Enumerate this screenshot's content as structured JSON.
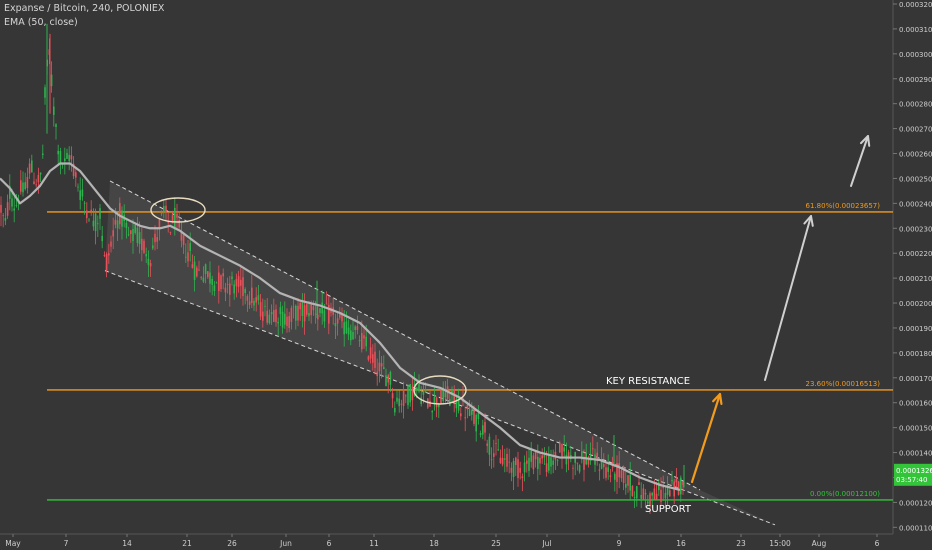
{
  "header": {
    "title": "Expanse / Bitcoin, 240, POLONIEX",
    "indicator": "EMA (50, close)"
  },
  "colors": {
    "background": "#363636",
    "up_candle": "#2fb34f",
    "down_candle": "#e8515a",
    "ema": "#b4b4b4",
    "fib_line": "#f29b1d",
    "support_line": "#33c43a",
    "channel": "#d8d8d8",
    "arrow_orange": "#f29b1d",
    "arrow_white": "#d0d0d0",
    "price_tag": "#33c43a"
  },
  "chart_data": {
    "type": "candlestick",
    "title": "Expanse / Bitcoin, 240, POLONIEX",
    "ylim": [
      0.000115,
      0.00032
    ],
    "x_ticks": [
      "May",
      "7",
      "14",
      "21",
      "26",
      "Jun",
      "6",
      "11",
      "18",
      "25",
      "Jul",
      "9",
      "16",
      "23",
      "15:00",
      "Aug",
      "6"
    ],
    "y_ticks": [
      "0.00032000",
      "0.00031000",
      "0.00030000",
      "0.00029000",
      "0.00028000",
      "0.00027000",
      "0.00026000",
      "0.00025000",
      "0.00024000",
      "0.00023000",
      "0.00022000",
      "0.00021000",
      "0.00020000",
      "0.00019000",
      "0.00018000",
      "0.00017000",
      "0.00016000",
      "0.00015000",
      "0.00014000",
      "0.00013000",
      "0.00012000",
      "0.00011000"
    ],
    "price_trend": [
      [
        0,
        0.00024
      ],
      [
        5,
        0.00023
      ],
      [
        10,
        0.000245
      ],
      [
        15,
        0.000238
      ],
      [
        20,
        0.000245
      ],
      [
        25,
        0.000245
      ],
      [
        30,
        0.000255
      ],
      [
        35,
        0.00025
      ],
      [
        40,
        0.000248
      ],
      [
        44,
        0.000265
      ],
      [
        46,
        0.0003
      ],
      [
        48,
        0.00029
      ],
      [
        50,
        0.000305
      ],
      [
        52,
        0.000285
      ],
      [
        56,
        0.00027
      ],
      [
        60,
        0.000258
      ],
      [
        65,
        0.000255
      ],
      [
        70,
        0.00026
      ],
      [
        75,
        0.000252
      ],
      [
        80,
        0.000245
      ],
      [
        85,
        0.00024
      ],
      [
        90,
        0.000236
      ],
      [
        95,
        0.000232
      ],
      [
        100,
        0.000236
      ],
      [
        105,
        0.000215
      ],
      [
        110,
        0.000222
      ],
      [
        115,
        0.000232
      ],
      [
        120,
        0.000236
      ],
      [
        125,
        0.00023
      ],
      [
        130,
        0.000225
      ],
      [
        135,
        0.000228
      ],
      [
        140,
        0.000225
      ],
      [
        145,
        0.000222
      ],
      [
        150,
        0.000218
      ],
      [
        155,
        0.000225
      ],
      [
        160,
        0.000232
      ],
      [
        165,
        0.000236
      ],
      [
        170,
        0.00023
      ],
      [
        175,
        0.000234
      ],
      [
        180,
        0.000228
      ],
      [
        185,
        0.000222
      ],
      [
        190,
        0.00022
      ],
      [
        195,
        0.000213
      ],
      [
        205,
        0.000212
      ],
      [
        215,
        0.000209
      ],
      [
        225,
        0.000208
      ],
      [
        235,
        0.000207
      ],
      [
        245,
        0.000206
      ],
      [
        255,
        0.000201
      ],
      [
        265,
        0.000196
      ],
      [
        275,
        0.000197
      ],
      [
        285,
        0.000193
      ],
      [
        295,
        0.000196
      ],
      [
        305,
        0.000197
      ],
      [
        315,
        0.000198
      ],
      [
        320,
        0.000196
      ],
      [
        330,
        0.000195
      ],
      [
        340,
        0.000192
      ],
      [
        350,
        0.000189
      ],
      [
        360,
        0.000186
      ],
      [
        370,
        0.00018
      ],
      [
        380,
        0.000173
      ],
      [
        390,
        0.00017
      ],
      [
        395,
        0.00016
      ],
      [
        405,
        0.000162
      ],
      [
        415,
        0.000166
      ],
      [
        425,
        0.000162
      ],
      [
        435,
        0.00016
      ],
      [
        445,
        0.000163
      ],
      [
        455,
        0.000161
      ],
      [
        465,
        0.000157
      ],
      [
        475,
        0.000153
      ],
      [
        485,
        0.00015
      ],
      [
        490,
        0.000142
      ],
      [
        500,
        0.000138
      ],
      [
        510,
        0.000135
      ],
      [
        520,
        0.000133
      ],
      [
        530,
        0.000137
      ],
      [
        540,
        0.000138
      ],
      [
        550,
        0.000135
      ],
      [
        560,
        0.00014
      ],
      [
        570,
        0.000138
      ],
      [
        580,
        0.000136
      ],
      [
        590,
        0.000138
      ],
      [
        600,
        0.000136
      ],
      [
        610,
        0.000132
      ],
      [
        620,
        0.000132
      ],
      [
        630,
        0.000127
      ],
      [
        640,
        0.000124
      ],
      [
        650,
        0.000122
      ],
      [
        660,
        0.000124
      ],
      [
        670,
        0.000125
      ],
      [
        680,
        0.000126
      ],
      [
        684,
        0.000133
      ]
    ],
    "ema_50": [
      [
        0,
        0.00025
      ],
      [
        10,
        0.000246
      ],
      [
        20,
        0.00024
      ],
      [
        30,
        0.000243
      ],
      [
        40,
        0.000247
      ],
      [
        50,
        0.000253
      ],
      [
        60,
        0.000256
      ],
      [
        70,
        0.000256
      ],
      [
        80,
        0.000253
      ],
      [
        90,
        0.000248
      ],
      [
        100,
        0.000243
      ],
      [
        110,
        0.000238
      ],
      [
        120,
        0.000235
      ],
      [
        130,
        0.000233
      ],
      [
        140,
        0.000231
      ],
      [
        150,
        0.00023
      ],
      [
        160,
        0.00023
      ],
      [
        170,
        0.000231
      ],
      [
        180,
        0.000229
      ],
      [
        190,
        0.000226
      ],
      [
        200,
        0.000223
      ],
      [
        210,
        0.000221
      ],
      [
        220,
        0.000219
      ],
      [
        240,
        0.000215
      ],
      [
        260,
        0.00021
      ],
      [
        280,
        0.000204
      ],
      [
        300,
        0.000201
      ],
      [
        320,
        0.000199
      ],
      [
        340,
        0.000196
      ],
      [
        360,
        0.000192
      ],
      [
        380,
        0.000184
      ],
      [
        400,
        0.000174
      ],
      [
        420,
        0.000168
      ],
      [
        440,
        0.000166
      ],
      [
        460,
        0.000162
      ],
      [
        480,
        0.000156
      ],
      [
        500,
        0.00015
      ],
      [
        520,
        0.000143
      ],
      [
        540,
        0.00014
      ],
      [
        560,
        0.000138
      ],
      [
        580,
        0.000138
      ],
      [
        600,
        0.000137
      ],
      [
        620,
        0.000134
      ],
      [
        640,
        0.00013
      ],
      [
        660,
        0.000127
      ],
      [
        680,
        0.000125
      ]
    ],
    "channel_upper": [
      [
        110,
        0.000249
      ],
      [
        700,
        0.000125
      ]
    ],
    "channel_lower": [
      [
        105,
        0.000213
      ],
      [
        775,
        0.000111
      ]
    ],
    "fib_levels": [
      {
        "ratio_label": "61.80%(0.00023657)",
        "value": 0.00023657
      },
      {
        "ratio_label": "23.60%(0.00016513)",
        "value": 0.00016513
      },
      {
        "ratio_label": "0.00%(0.00012100)",
        "value": 0.000121
      }
    ],
    "annotations": {
      "key_resistance": "KEY RESISTANCE",
      "support": "SUPPORT"
    },
    "last_price": "0.00013268",
    "countdown": "03:57:40"
  }
}
